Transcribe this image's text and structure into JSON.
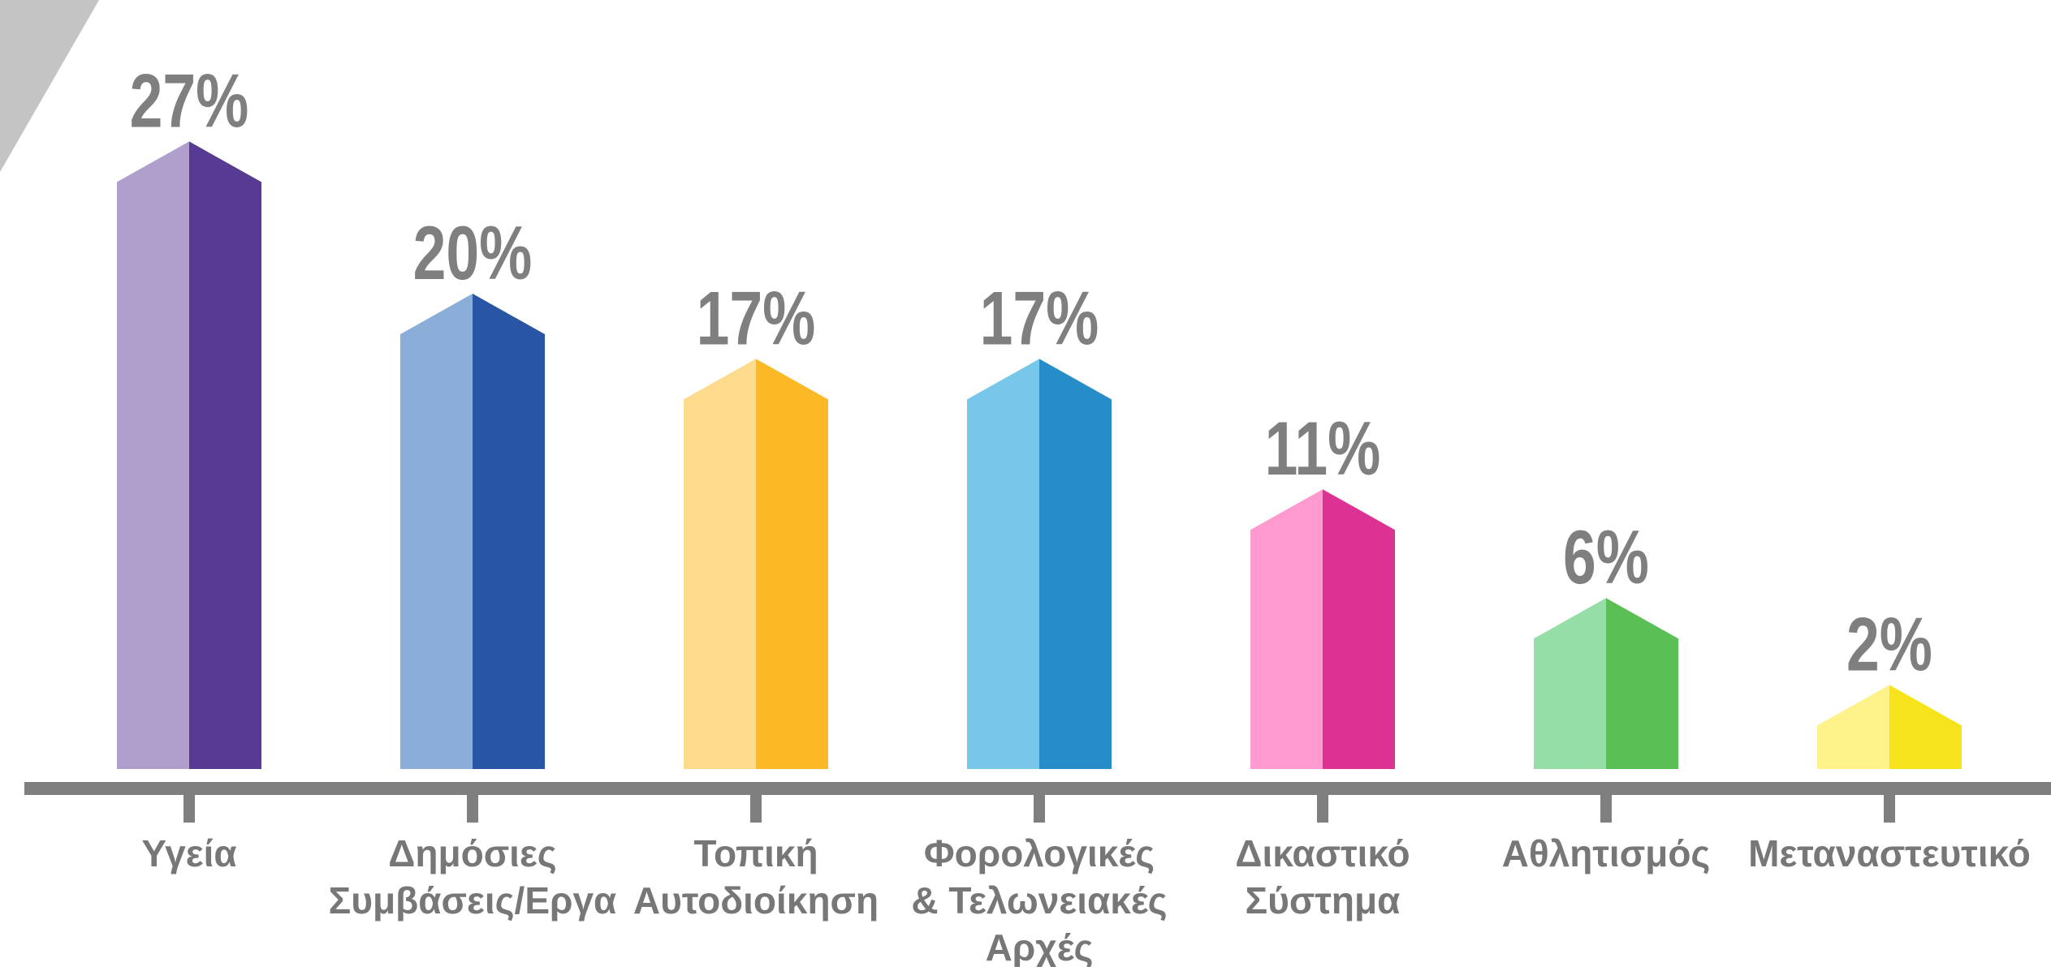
{
  "chart_data": {
    "type": "bar",
    "categories": [
      [
        "Υγεία"
      ],
      [
        "Δημόσιες",
        "Συμβάσεις/Εργα"
      ],
      [
        "Τοπική",
        "Αυτοδιοίκηση"
      ],
      [
        "Φορολογικές",
        "& Τελωνειακές",
        "Αρχές"
      ],
      [
        "Δικαστικό",
        "Σύστημα"
      ],
      [
        "Αθλητισμός"
      ],
      [
        "Μεταναστευτικό"
      ]
    ],
    "values": [
      27,
      20,
      17,
      17,
      11,
      6,
      2
    ],
    "value_labels": [
      "27%",
      "20%",
      "17%",
      "17%",
      "11%",
      "6%",
      "2%"
    ],
    "unit": "%",
    "ylim": [
      0,
      30
    ],
    "grid": false,
    "legend": "none",
    "colors": [
      {
        "light": "#B09FCC",
        "dark": "#573A93"
      },
      {
        "light": "#8BAED8",
        "dark": "#2856A4"
      },
      {
        "light": "#FEDB8C",
        "dark": "#FDB825"
      },
      {
        "light": "#77C7EA",
        "dark": "#268DC8"
      },
      {
        "light": "#FE9ACF",
        "dark": "#DC3293"
      },
      {
        "light": "#96DEA8",
        "dark": "#5ABF55"
      },
      {
        "light": "#FEF28A",
        "dark": "#F6E31B"
      }
    ],
    "axis_color": "#7F7F7F",
    "label_color": "#777777",
    "corner_color": "#C4C4C4"
  }
}
